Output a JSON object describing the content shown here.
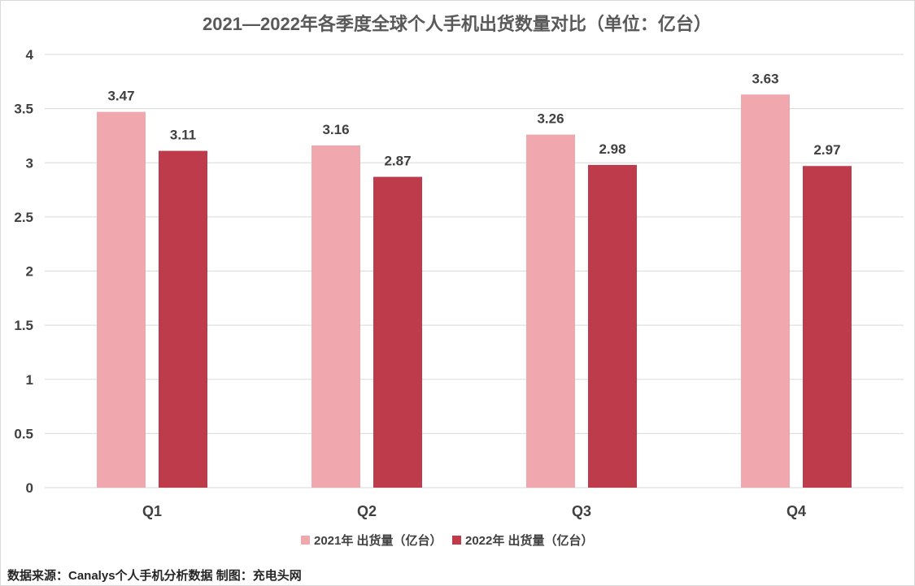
{
  "chart_data": {
    "type": "bar",
    "title": "2021—2022年各季度全球个人手机出货数量对比（单位：亿台）",
    "categories": [
      "Q1",
      "Q2",
      "Q3",
      "Q4"
    ],
    "series": [
      {
        "name": "2021年 出货量（亿台）",
        "values": [
          3.47,
          3.16,
          3.26,
          3.63
        ],
        "color": "#f0a8ae"
      },
      {
        "name": "2022年 出货量（亿台）",
        "values": [
          3.11,
          2.87,
          2.98,
          2.97
        ],
        "color": "#be3b4b"
      }
    ],
    "ylim": [
      0,
      4
    ],
    "yticks": [
      "0",
      "0.5",
      "1",
      "1.5",
      "2",
      "2.5",
      "3",
      "3.5",
      "4"
    ],
    "grid": true,
    "legend_position": "bottom",
    "data_labels": true
  },
  "footer": {
    "source": "数据来源：Canalys个人手机分析数据  制图：充电头网"
  }
}
